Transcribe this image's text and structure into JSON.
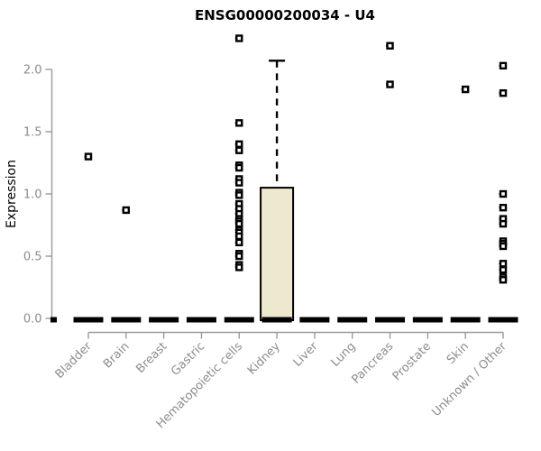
{
  "title": "ENSG00000200034 - U4",
  "chart_data": {
    "type": "box",
    "title": "ENSG00000200034 - U4",
    "xlabel": "",
    "ylabel": "Expression",
    "ylim": [
      0.0,
      2.3
    ],
    "yticks": [
      0.0,
      0.5,
      1.0,
      1.5,
      2.0
    ],
    "ytick_labels": [
      "0.0",
      "0.5",
      "1.0",
      "1.5",
      "2.0"
    ],
    "grid": false,
    "legend": "none",
    "categories": [
      "Bladder",
      "Brain",
      "Breast",
      "Gastric",
      "Hematopoietic cells",
      "Kidney",
      "Liver",
      "Lung",
      "Pancreas",
      "Prostate",
      "Skin",
      "Unknown / Other"
    ],
    "boxes": [
      {
        "category": "Bladder",
        "median": 0.0,
        "q1": 0.0,
        "q3": 0.0,
        "whisker_low": 0.0,
        "whisker_high": 0.0
      },
      {
        "category": "Brain",
        "median": 0.0,
        "q1": 0.0,
        "q3": 0.0,
        "whisker_low": 0.0,
        "whisker_high": 0.0
      },
      {
        "category": "Breast",
        "median": 0.0,
        "q1": 0.0,
        "q3": 0.0,
        "whisker_low": 0.0,
        "whisker_high": 0.0
      },
      {
        "category": "Gastric",
        "median": 0.0,
        "q1": 0.0,
        "q3": 0.0,
        "whisker_low": 0.0,
        "whisker_high": 0.0
      },
      {
        "category": "Hematopoietic cells",
        "median": 0.0,
        "q1": 0.0,
        "q3": 0.0,
        "whisker_low": 0.0,
        "whisker_high": 0.0
      },
      {
        "category": "Kidney",
        "median": 0.0,
        "q1": 0.0,
        "q3": 1.05,
        "whisker_low": 0.0,
        "whisker_high": 2.07
      },
      {
        "category": "Liver",
        "median": 0.0,
        "q1": 0.0,
        "q3": 0.0,
        "whisker_low": 0.0,
        "whisker_high": 0.0
      },
      {
        "category": "Lung",
        "median": 0.0,
        "q1": 0.0,
        "q3": 0.0,
        "whisker_low": 0.0,
        "whisker_high": 0.0
      },
      {
        "category": "Pancreas",
        "median": 0.0,
        "q1": 0.0,
        "q3": 0.0,
        "whisker_low": 0.0,
        "whisker_high": 0.0
      },
      {
        "category": "Prostate",
        "median": 0.0,
        "q1": 0.0,
        "q3": 0.0,
        "whisker_low": 0.0,
        "whisker_high": 0.0
      },
      {
        "category": "Skin",
        "median": 0.0,
        "q1": 0.0,
        "q3": 0.0,
        "whisker_low": 0.0,
        "whisker_high": 0.0
      },
      {
        "category": "Unknown / Other",
        "median": 0.0,
        "q1": 0.0,
        "q3": 0.0,
        "whisker_low": 0.0,
        "whisker_high": 0.0
      }
    ],
    "outlier_points": [
      [
        1.3
      ],
      [
        0.87
      ],
      [],
      [],
      [
        2.25,
        1.57,
        1.4,
        1.35,
        1.23,
        1.21,
        1.12,
        1.09,
        1.01,
        0.99,
        0.92,
        0.88,
        0.84,
        0.8,
        0.78,
        0.76,
        0.71,
        0.69,
        0.66,
        0.61,
        0.52,
        0.5,
        0.43,
        0.41
      ],
      [],
      [],
      [],
      [
        2.19,
        1.88
      ],
      [],
      [
        1.84
      ],
      [
        2.03,
        1.81,
        1.0,
        0.89,
        0.8,
        0.76,
        0.62,
        0.6,
        0.58,
        0.44,
        0.39,
        0.33,
        0.31
      ]
    ],
    "colors": {
      "box_fill": "#EDE8CE",
      "box_stroke": "#000000",
      "median_dash": "#000000",
      "whisker": "#000000",
      "point": "#000000",
      "point_center": "#ffffff",
      "axis_line": "#9a9a9a",
      "tick_label": "#8c8c8c",
      "title": "#000000"
    }
  }
}
